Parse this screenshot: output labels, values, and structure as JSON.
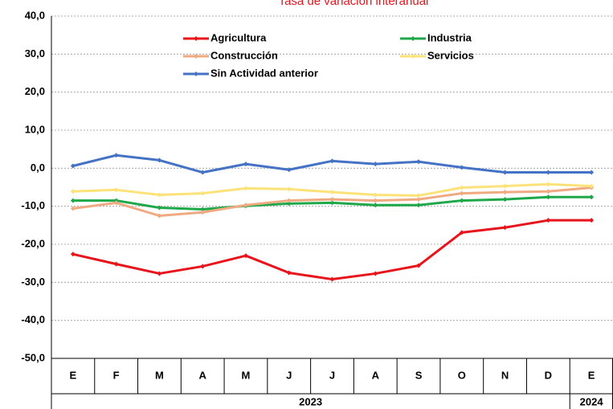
{
  "chart_data": {
    "type": "line",
    "title": "Tasa de variación interanual",
    "groups": [
      {
        "label": "2023",
        "categories": [
          "E",
          "F",
          "M",
          "A",
          "M",
          "J",
          "J",
          "A",
          "S",
          "O",
          "N",
          "D"
        ]
      },
      {
        "label": "2024",
        "categories": [
          "E"
        ]
      }
    ],
    "series": [
      {
        "name": "Agricultura",
        "color": "#e8141b",
        "values": [
          -22.6,
          -25.2,
          -27.7,
          -25.8,
          -23.0,
          -27.5,
          -29.2,
          -27.7,
          -25.6,
          -16.9,
          -15.6,
          -13.7,
          -13.7
        ]
      },
      {
        "name": "Industria",
        "color": "#1ea84a",
        "values": [
          -8.5,
          -8.5,
          -10.4,
          -10.8,
          -9.9,
          -9.3,
          -9.1,
          -9.7,
          -9.7,
          -8.5,
          -8.2,
          -7.6,
          -7.6
        ]
      },
      {
        "name": "Construcción",
        "color": "#f0aa82",
        "values": [
          -10.6,
          -9.1,
          -12.5,
          -11.6,
          -9.7,
          -8.5,
          -8.2,
          -8.5,
          -8.2,
          -6.6,
          -6.3,
          -6.1,
          -5.1
        ]
      },
      {
        "name": "Servicios",
        "color": "#fde27a",
        "values": [
          -6.1,
          -5.7,
          -7.0,
          -6.6,
          -5.3,
          -5.5,
          -6.3,
          -7.0,
          -7.2,
          -5.1,
          -4.7,
          -4.2,
          -4.7
        ]
      },
      {
        "name": "Sin Actividad anterior",
        "color": "#4472c4",
        "values": [
          0.6,
          3.4,
          2.1,
          -1.1,
          1.1,
          -0.4,
          1.9,
          1.1,
          1.7,
          0.2,
          -1.1,
          -1.1,
          -1.1
        ]
      }
    ],
    "ylim": [
      -50,
      40
    ],
    "yticks": [
      {
        "value": -50,
        "label": "-50,0"
      },
      {
        "value": -40,
        "label": "-40,0"
      },
      {
        "value": -30,
        "label": "-30,0"
      },
      {
        "value": -20,
        "label": "-20,0"
      },
      {
        "value": -10,
        "label": "-10,0"
      },
      {
        "value": 0,
        "label": "0,0"
      },
      {
        "value": 10,
        "label": "10,0"
      },
      {
        "value": 20,
        "label": "20,0"
      },
      {
        "value": 30,
        "label": "30,0"
      },
      {
        "value": 40,
        "label": "40,0"
      }
    ],
    "grid": true
  }
}
